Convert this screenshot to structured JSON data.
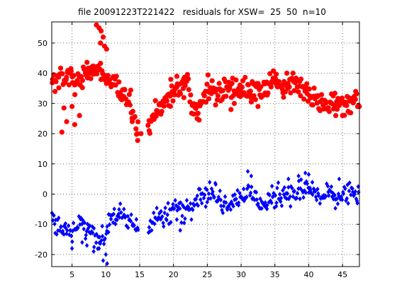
{
  "chart_data": {
    "type": "scatter",
    "title": "file 20091223T221422   residuals for XSW=  25  50  n=10",
    "xlabel": "",
    "ylabel": "",
    "xlim": [
      2,
      47.5
    ],
    "ylim": [
      -24,
      57
    ],
    "xticks": [
      5,
      10,
      15,
      20,
      25,
      30,
      35,
      40,
      45
    ],
    "yticks": [
      -20,
      -10,
      0,
      10,
      20,
      30,
      40,
      50
    ],
    "grid": true,
    "series": [
      {
        "name": "",
        "color": "#ff0000",
        "marker": "circle",
        "anchors": [
          [
            2.0,
            38
          ],
          [
            2.5,
            39
          ],
          [
            3.0,
            37
          ],
          [
            3.5,
            40
          ],
          [
            4.0,
            38
          ],
          [
            4.5,
            37
          ],
          [
            5.0,
            38
          ],
          [
            5.5,
            37
          ],
          [
            6.0,
            38
          ],
          [
            6.5,
            40
          ],
          [
            7.0,
            41
          ],
          [
            7.5,
            40
          ],
          [
            8.0,
            41
          ],
          [
            8.5,
            40
          ],
          [
            9.0,
            42
          ],
          [
            9.5,
            40
          ],
          [
            10.0,
            38
          ],
          [
            10.5,
            37
          ],
          [
            11.0,
            36
          ],
          [
            11.5,
            36
          ],
          [
            12.0,
            35
          ],
          [
            12.5,
            34
          ],
          [
            13.0,
            33
          ],
          [
            13.5,
            31
          ],
          [
            14.0,
            27
          ],
          [
            14.5,
            20.5
          ],
          [
            15.0,
            20.5
          ],
          [
            16.0,
            20.5
          ],
          [
            16.5,
            22
          ],
          [
            17.0,
            26
          ],
          [
            17.5,
            28
          ],
          [
            18.0,
            30
          ],
          [
            18.5,
            31
          ],
          [
            19.0,
            31
          ],
          [
            19.5,
            32
          ],
          [
            20.0,
            33
          ],
          [
            20.5,
            35
          ],
          [
            21.0,
            36
          ],
          [
            21.5,
            37
          ],
          [
            22.0,
            37
          ],
          [
            22.5,
            32
          ],
          [
            23.0,
            29
          ],
          [
            23.5,
            28
          ],
          [
            24.0,
            30
          ],
          [
            24.5,
            34
          ],
          [
            25.0,
            34
          ],
          [
            25.5,
            35
          ],
          [
            26.0,
            33
          ],
          [
            26.5,
            33
          ],
          [
            27.0,
            34
          ],
          [
            27.5,
            34
          ],
          [
            28.0,
            35
          ],
          [
            28.5,
            35
          ],
          [
            29.0,
            35
          ],
          [
            29.5,
            36
          ],
          [
            30.0,
            35
          ],
          [
            30.5,
            35
          ],
          [
            31.0,
            34
          ],
          [
            31.5,
            34
          ],
          [
            32.0,
            34
          ],
          [
            32.5,
            35
          ],
          [
            33.0,
            35
          ],
          [
            33.5,
            35
          ],
          [
            34.0,
            35
          ],
          [
            34.5,
            36
          ],
          [
            35.0,
            37
          ],
          [
            35.5,
            37
          ],
          [
            36.0,
            37
          ],
          [
            36.5,
            37
          ],
          [
            37.0,
            37
          ],
          [
            37.5,
            37
          ],
          [
            38.0,
            37
          ],
          [
            38.5,
            36
          ],
          [
            39.0,
            36
          ],
          [
            39.5,
            35
          ],
          [
            40.0,
            33
          ],
          [
            40.5,
            32
          ],
          [
            41.0,
            31
          ],
          [
            41.5,
            31
          ],
          [
            42.0,
            31
          ],
          [
            42.5,
            30
          ],
          [
            43.0,
            31
          ],
          [
            43.5,
            31
          ],
          [
            44.0,
            30
          ],
          [
            44.5,
            30
          ],
          [
            45.0,
            31
          ],
          [
            45.5,
            31
          ],
          [
            46.0,
            31
          ],
          [
            46.5,
            32
          ],
          [
            47.0,
            32
          ],
          [
            47.5,
            31
          ]
        ],
        "spread": 3.5,
        "count": 400,
        "extra_points": [
          [
            8.6,
            56
          ],
          [
            9.0,
            55
          ],
          [
            9.3,
            54
          ],
          [
            9.6,
            52
          ],
          [
            9.2,
            50
          ],
          [
            9.8,
            49
          ],
          [
            10.1,
            48
          ],
          [
            3.5,
            20.5
          ],
          [
            4.2,
            24
          ],
          [
            5.4,
            23
          ],
          [
            6.1,
            26
          ],
          [
            3.8,
            28.5
          ],
          [
            5.0,
            29
          ],
          [
            13.9,
            24
          ],
          [
            14.7,
            20
          ],
          [
            15.2,
            20
          ],
          [
            16.4,
            21
          ],
          [
            19.6,
            38
          ],
          [
            20.5,
            39
          ],
          [
            21.5,
            38
          ],
          [
            22.0,
            39
          ],
          [
            23.5,
            25
          ],
          [
            23.0,
            26.5
          ],
          [
            28.5,
            28
          ],
          [
            29.0,
            30
          ],
          [
            31.5,
            30.5
          ],
          [
            32.5,
            29
          ],
          [
            44.0,
            26
          ],
          [
            45.0,
            26
          ],
          [
            46.0,
            27
          ]
        ]
      },
      {
        "name": "",
        "color": "#0000ff",
        "marker": "diamond",
        "anchors": [
          [
            2.0,
            -8
          ],
          [
            2.5,
            -10
          ],
          [
            3.0,
            -11
          ],
          [
            3.5,
            -12
          ],
          [
            4.0,
            -12
          ],
          [
            4.5,
            -11
          ],
          [
            5.0,
            -12
          ],
          [
            5.5,
            -11
          ],
          [
            6.0,
            -10
          ],
          [
            6.5,
            -10
          ],
          [
            7.0,
            -11
          ],
          [
            7.5,
            -12
          ],
          [
            8.0,
            -12
          ],
          [
            8.5,
            -14
          ],
          [
            9.0,
            -14
          ],
          [
            9.5,
            -16
          ],
          [
            10.0,
            -13
          ],
          [
            10.5,
            -9
          ],
          [
            11.0,
            -6
          ],
          [
            11.5,
            -7
          ],
          [
            12.0,
            -8
          ],
          [
            12.5,
            -8
          ],
          [
            13.0,
            -9
          ],
          [
            13.5,
            -9
          ],
          [
            14.0,
            -10
          ],
          [
            14.5,
            -11
          ],
          [
            15.0,
            -10
          ],
          [
            16.0,
            -10
          ],
          [
            16.5,
            -9
          ],
          [
            17.0,
            -8
          ],
          [
            17.5,
            -8
          ],
          [
            18.0,
            -7
          ],
          [
            18.5,
            -8
          ],
          [
            19.0,
            -8
          ],
          [
            19.5,
            -6
          ],
          [
            20.0,
            -5
          ],
          [
            20.5,
            -4
          ],
          [
            21.0,
            -5
          ],
          [
            21.5,
            -6
          ],
          [
            22.0,
            -4
          ],
          [
            22.5,
            -3
          ],
          [
            23.0,
            -2
          ],
          [
            23.5,
            -1
          ],
          [
            24.0,
            0
          ],
          [
            24.5,
            0
          ],
          [
            25.0,
            0
          ],
          [
            25.5,
            1
          ],
          [
            26.0,
            0
          ],
          [
            26.5,
            -1
          ],
          [
            27.0,
            -2
          ],
          [
            27.5,
            -3
          ],
          [
            28.0,
            -3
          ],
          [
            28.5,
            -2
          ],
          [
            29.0,
            -1
          ],
          [
            29.5,
            -1
          ],
          [
            30.0,
            -1
          ],
          [
            30.5,
            0
          ],
          [
            31.0,
            0
          ],
          [
            31.5,
            0
          ],
          [
            32.0,
            -1
          ],
          [
            32.5,
            -2
          ],
          [
            33.0,
            -3
          ],
          [
            33.5,
            -4
          ],
          [
            34.0,
            -3
          ],
          [
            34.5,
            -2
          ],
          [
            35.0,
            -1
          ],
          [
            35.5,
            0
          ],
          [
            36.0,
            0
          ],
          [
            36.5,
            1
          ],
          [
            37.0,
            1
          ],
          [
            37.5,
            0
          ],
          [
            38.0,
            0
          ],
          [
            38.5,
            1
          ],
          [
            39.0,
            1
          ],
          [
            39.5,
            1
          ],
          [
            40.0,
            2
          ],
          [
            40.5,
            1
          ],
          [
            41.0,
            0
          ],
          [
            41.5,
            -1
          ],
          [
            42.0,
            -1
          ],
          [
            42.5,
            0
          ],
          [
            43.0,
            0
          ],
          [
            43.5,
            -1
          ],
          [
            44.0,
            -2
          ],
          [
            44.5,
            -1
          ],
          [
            45.0,
            0
          ],
          [
            45.5,
            0
          ],
          [
            46.0,
            0
          ],
          [
            46.5,
            1
          ],
          [
            47.0,
            0
          ],
          [
            47.5,
            -1
          ]
        ],
        "spread": 3.2,
        "count": 400,
        "extra_points": [
          [
            9.6,
            -22
          ],
          [
            10.2,
            -23
          ],
          [
            10.0,
            -20
          ],
          [
            9.0,
            -18
          ],
          [
            8.2,
            -19
          ],
          [
            7.2,
            -17
          ],
          [
            31.0,
            7.5
          ],
          [
            31.5,
            6
          ],
          [
            37.0,
            5
          ],
          [
            38.5,
            6
          ],
          [
            39.5,
            7
          ],
          [
            40.0,
            6.5
          ],
          [
            44.5,
            5
          ],
          [
            21.0,
            -12
          ],
          [
            5.0,
            -18
          ],
          [
            6.5,
            -16
          ]
        ]
      }
    ]
  }
}
